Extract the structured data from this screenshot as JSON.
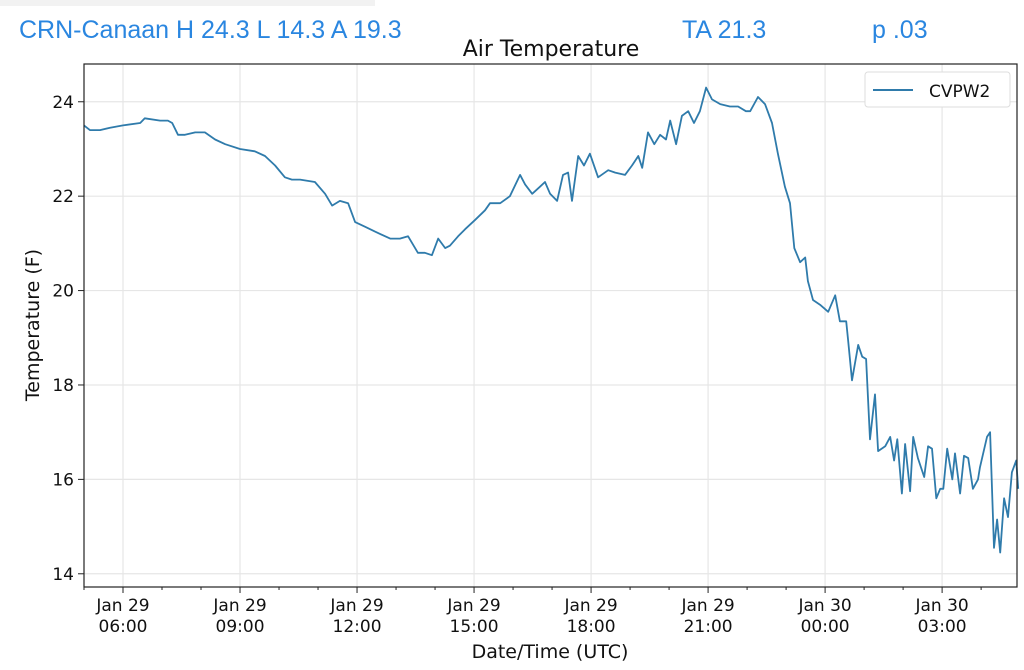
{
  "header": {
    "station_summary": "CRN-Canaan H 24.3 L 14.3 A 19.3",
    "ta": "TA 21.3",
    "p": "p .03"
  },
  "colors": {
    "header": "#2a86e0",
    "series": "#2f7bab"
  },
  "chart_data": {
    "type": "line",
    "title": "Air Temperature",
    "xlabel": "Date/Time (UTC)",
    "ylabel": "Temperature (F)",
    "x_units": "hours since Jan 29 00:00 UTC",
    "xlim": [
      5.0,
      28.92
    ],
    "ylim": [
      13.72,
      24.8
    ],
    "grid": true,
    "legend_position": "top-right",
    "xticks": [
      {
        "value": 6,
        "line1": "Jan 29",
        "line2": "06:00"
      },
      {
        "value": 9,
        "line1": "Jan 29",
        "line2": "09:00"
      },
      {
        "value": 12,
        "line1": "Jan 29",
        "line2": "12:00"
      },
      {
        "value": 15,
        "line1": "Jan 29",
        "line2": "15:00"
      },
      {
        "value": 18,
        "line1": "Jan 29",
        "line2": "18:00"
      },
      {
        "value": 21,
        "line1": "Jan 29",
        "line2": "21:00"
      },
      {
        "value": 24,
        "line1": "Jan 30",
        "line2": "00:00"
      },
      {
        "value": 27,
        "line1": "Jan 30",
        "line2": "03:00"
      }
    ],
    "yticks": [
      "14",
      "16",
      "18",
      "20",
      "22",
      "24"
    ],
    "series": [
      {
        "name": "CVPW2",
        "x": [
          5.0,
          5.15,
          5.41,
          5.67,
          6.0,
          6.44,
          6.56,
          6.95,
          7.15,
          7.26,
          7.41,
          7.59,
          7.85,
          8.1,
          8.36,
          8.62,
          9.0,
          9.38,
          9.64,
          9.9,
          10.15,
          10.33,
          10.54,
          10.92,
          11.18,
          11.36,
          11.56,
          11.77,
          11.95,
          12.21,
          12.46,
          12.85,
          13.1,
          13.31,
          13.56,
          13.74,
          13.92,
          14.08,
          14.26,
          14.38,
          14.59,
          14.77,
          15.03,
          15.28,
          15.41,
          15.67,
          15.92,
          16.18,
          16.31,
          16.49,
          16.69,
          16.82,
          16.95,
          17.13,
          17.28,
          17.41,
          17.51,
          17.67,
          17.82,
          17.97,
          18.18,
          18.44,
          18.62,
          18.87,
          19.05,
          19.21,
          19.31,
          19.46,
          19.62,
          19.77,
          19.92,
          20.03,
          20.18,
          20.33,
          20.49,
          20.64,
          20.79,
          20.95,
          21.1,
          21.31,
          21.56,
          21.77,
          21.97,
          22.08,
          22.28,
          22.46,
          22.64,
          22.79,
          22.97,
          23.1,
          23.21,
          23.36,
          23.49,
          23.56,
          23.69,
          23.87,
          24.08,
          24.26,
          24.38,
          24.54,
          24.59,
          24.69,
          24.85,
          24.95,
          25.05,
          25.15,
          25.28,
          25.36,
          25.54,
          25.67,
          25.77,
          25.85,
          25.97,
          26.05,
          26.18,
          26.26,
          26.38,
          26.54,
          26.64,
          26.74,
          26.85,
          26.95,
          27.03,
          27.13,
          27.26,
          27.33,
          27.46,
          27.56,
          27.67,
          27.79,
          27.92,
          27.97,
          28.15,
          28.23,
          28.33,
          28.41,
          28.49,
          28.59,
          28.69,
          28.79,
          28.9,
          28.95
        ],
        "y": [
          23.5,
          23.4,
          23.4,
          23.45,
          23.5,
          23.55,
          23.65,
          23.6,
          23.6,
          23.55,
          23.3,
          23.3,
          23.35,
          23.35,
          23.2,
          23.1,
          23.0,
          22.95,
          22.85,
          22.65,
          22.4,
          22.35,
          22.35,
          22.3,
          22.05,
          21.8,
          21.9,
          21.85,
          21.45,
          21.35,
          21.25,
          21.1,
          21.1,
          21.15,
          20.8,
          20.8,
          20.75,
          21.1,
          20.9,
          20.95,
          21.15,
          21.3,
          21.5,
          21.7,
          21.85,
          21.85,
          22.0,
          22.45,
          22.25,
          22.05,
          22.2,
          22.3,
          22.05,
          21.9,
          22.45,
          22.5,
          21.9,
          22.85,
          22.65,
          22.9,
          22.4,
          22.55,
          22.5,
          22.45,
          22.65,
          22.85,
          22.6,
          23.35,
          23.1,
          23.3,
          23.2,
          23.6,
          23.1,
          23.7,
          23.8,
          23.55,
          23.8,
          24.3,
          24.05,
          23.95,
          23.9,
          23.9,
          23.8,
          23.8,
          24.1,
          23.95,
          23.55,
          22.9,
          22.2,
          21.85,
          20.9,
          20.6,
          20.7,
          20.2,
          19.8,
          19.7,
          19.55,
          19.9,
          19.35,
          19.35,
          18.95,
          18.1,
          18.85,
          18.6,
          18.55,
          16.85,
          17.8,
          16.6,
          16.7,
          16.9,
          16.4,
          16.85,
          15.7,
          16.75,
          15.75,
          16.9,
          16.45,
          16.05,
          16.7,
          16.65,
          15.6,
          15.8,
          15.8,
          16.65,
          16.0,
          16.55,
          15.7,
          16.5,
          16.45,
          15.8,
          16.0,
          16.25,
          16.9,
          17.0,
          14.55,
          15.15,
          14.45,
          15.6,
          15.2,
          16.15,
          16.4,
          15.8
        ]
      }
    ]
  }
}
